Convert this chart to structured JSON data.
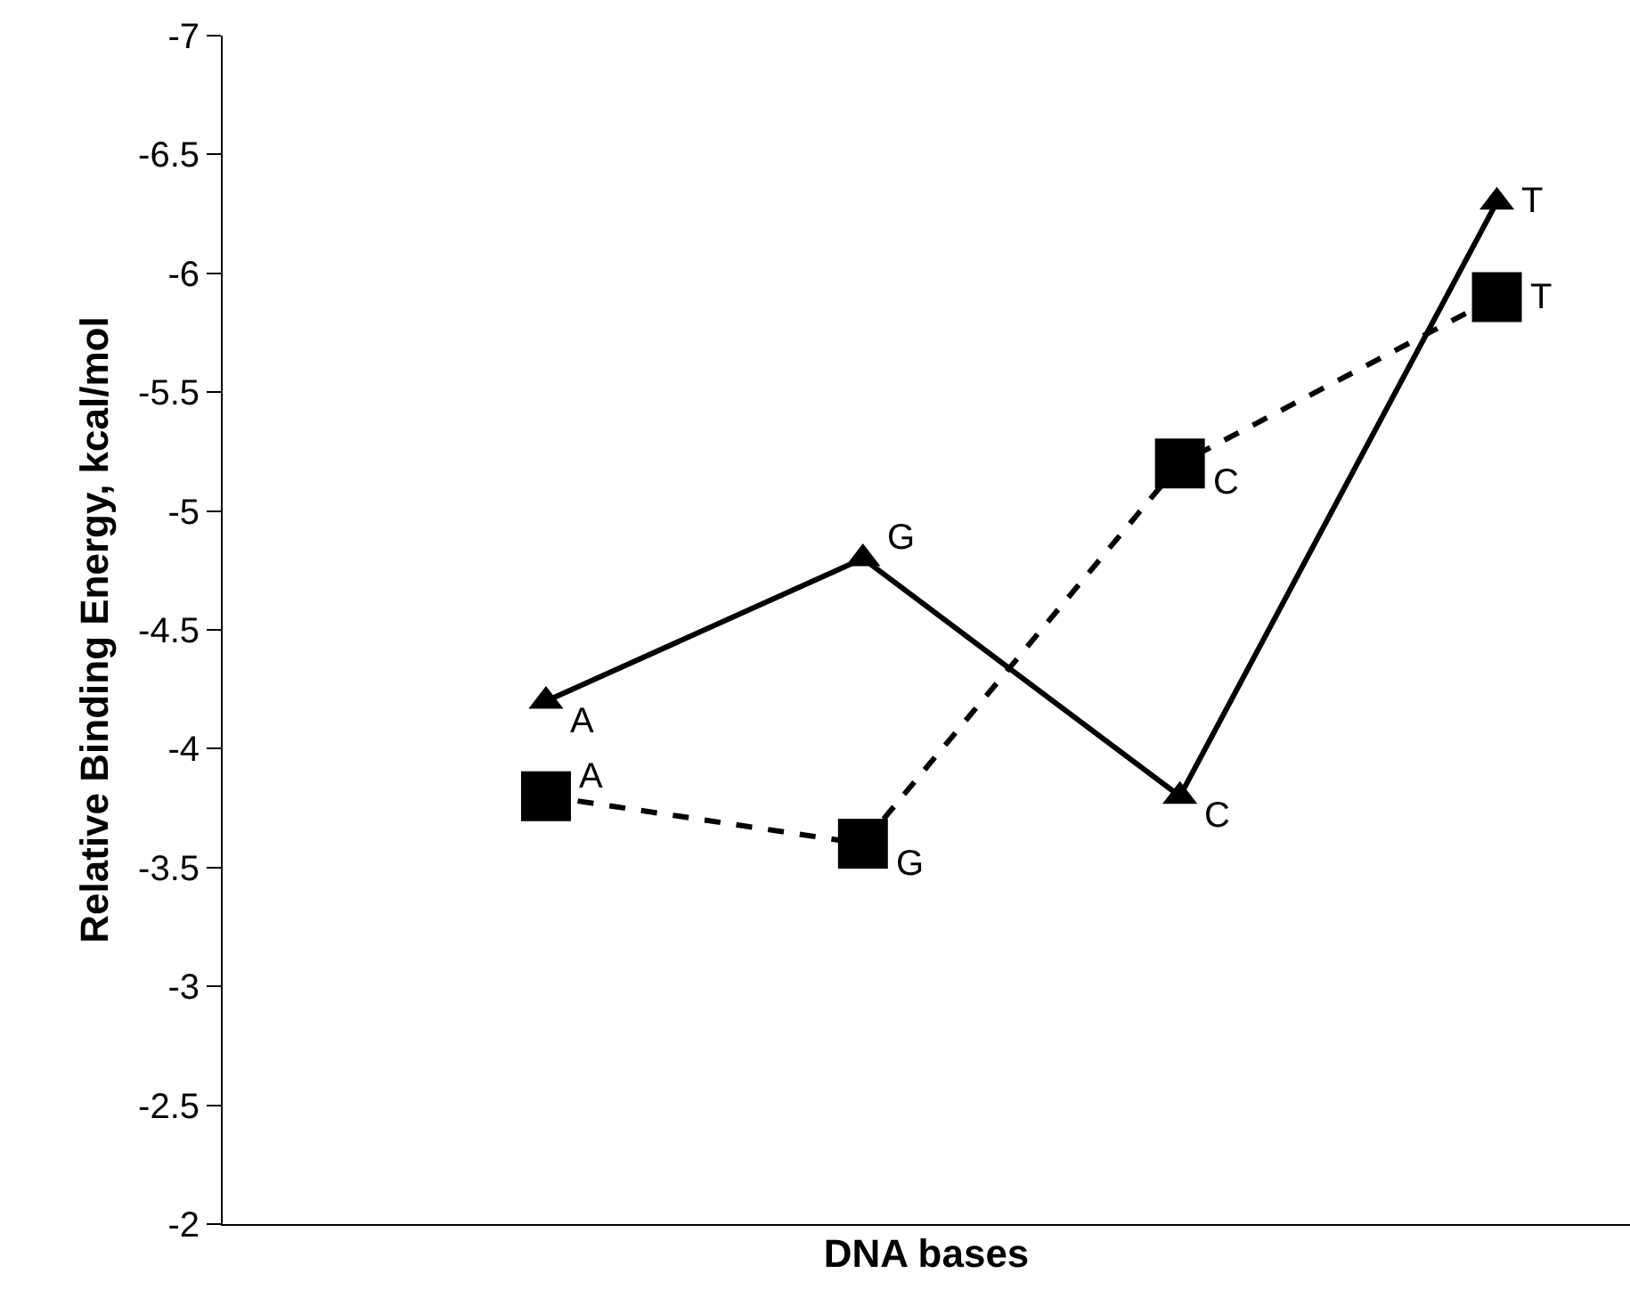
{
  "chart_data": {
    "type": "line",
    "xlabel": "DNA bases",
    "ylabel": "Relative Binding Energy, kcal/mol",
    "categories": [
      null,
      null,
      null,
      null
    ],
    "series": [
      {
        "color": "#000000",
        "marker": "triangle",
        "line_style": "solid",
        "values": [
          -4.2,
          -4.8,
          -3.8,
          -6.3
        ],
        "value_labels": [
          "A",
          "G",
          "C",
          "T"
        ]
      },
      {
        "color": "#000000",
        "marker": "square",
        "line_style": "dashed",
        "values": [
          -3.8,
          -3.6,
          -5.2,
          -5.9
        ],
        "value_labels": [
          "A",
          "G",
          "C",
          "T"
        ]
      }
    ],
    "ylim": [
      -2,
      -7
    ],
    "yticks": [
      -7,
      -6.5,
      -6,
      -5.5,
      -5,
      -4.5,
      -4,
      -3.5,
      -3,
      -2.5,
      -2
    ],
    "grid": false
  }
}
